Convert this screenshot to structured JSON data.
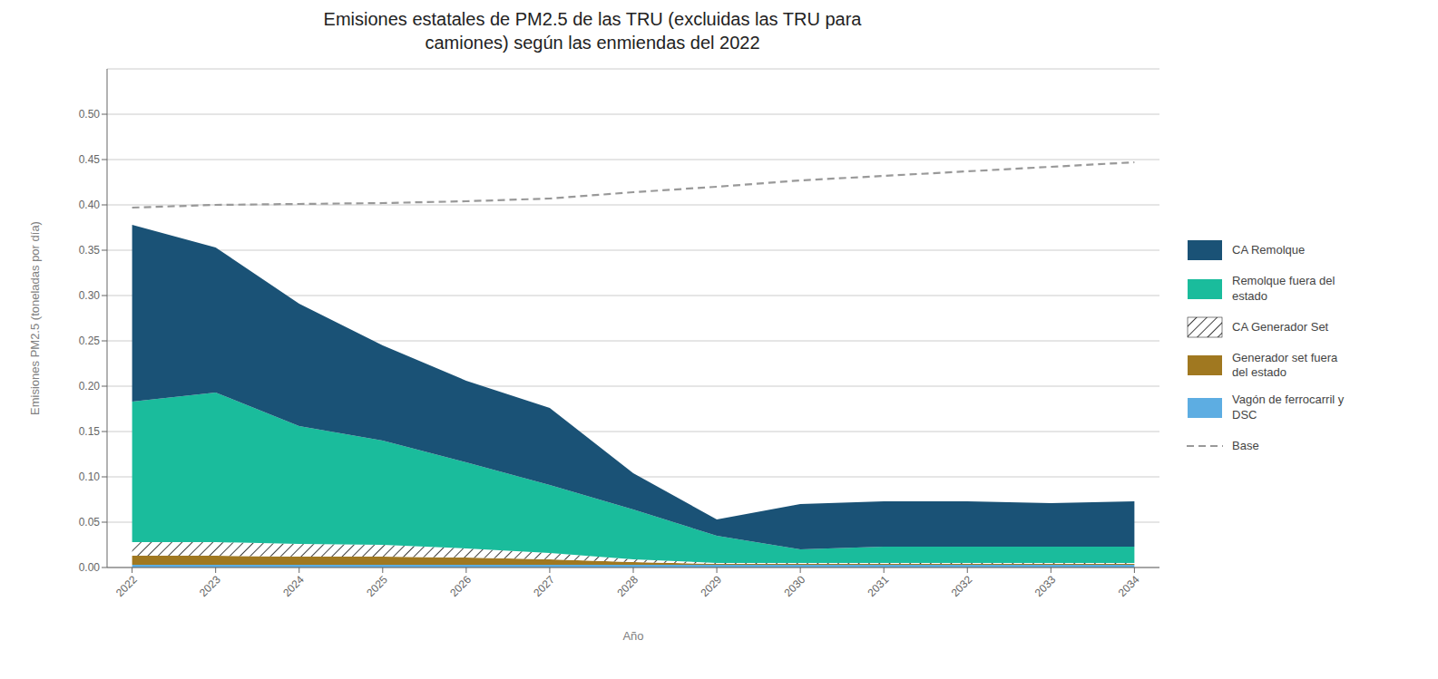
{
  "chart_data": {
    "type": "area",
    "title": "Emisiones estatales de PM2.5 de las TRU (excluidas las TRU para\ncamiones) según las enmiendas del 2022",
    "xlabel": "Año",
    "ylabel": "Emisiones PM2.5 (toneladas por día)",
    "x": [
      2022,
      2023,
      2024,
      2025,
      2026,
      2027,
      2028,
      2029,
      2030,
      2031,
      2032,
      2033,
      2034
    ],
    "stacked": true,
    "series": [
      {
        "name": "CA Remolque",
        "color": "#1A5276",
        "values": [
          0.195,
          0.16,
          0.135,
          0.105,
          0.09,
          0.085,
          0.04,
          0.018,
          0.05,
          0.05,
          0.05,
          0.048,
          0.05
        ]
      },
      {
        "name": "Remolque fuera del\nestado",
        "color": "#1ABC9C",
        "values": [
          0.155,
          0.165,
          0.13,
          0.115,
          0.095,
          0.075,
          0.055,
          0.03,
          0.015,
          0.018,
          0.018,
          0.018,
          0.018
        ]
      },
      {
        "name": "CA Generador Set",
        "color": "#ffffff",
        "values": [
          0.015,
          0.015,
          0.014,
          0.013,
          0.01,
          0.007,
          0.003,
          0.001,
          0.001,
          0.001,
          0.001,
          0.001,
          0.001
        ]
      },
      {
        "name": "Generador set fuera\ndel estado",
        "color": "#A07820",
        "values": [
          0.01,
          0.01,
          0.009,
          0.009,
          0.008,
          0.006,
          0.003,
          0.001,
          0.001,
          0.001,
          0.001,
          0.001,
          0.001
        ]
      },
      {
        "name": "Vagón de ferrocarril y\nDSC",
        "color": "#5DADE2",
        "values": [
          0.003,
          0.003,
          0.003,
          0.003,
          0.003,
          0.003,
          0.003,
          0.003,
          0.003,
          0.003,
          0.003,
          0.003,
          0.003
        ]
      },
      {
        "name": "Base",
        "type": "line",
        "color": "#999999",
        "line_style": "dashed",
        "values": [
          0.397,
          0.4,
          0.401,
          0.402,
          0.404,
          0.407,
          0.414,
          0.42,
          0.427,
          0.432,
          0.437,
          0.442,
          0.447
        ]
      }
    ],
    "xlim": [
      2021.7,
      2034.3
    ],
    "xticks": [
      2022,
      2023,
      2024,
      2025,
      2026,
      2027,
      2028,
      2029,
      2030,
      2031,
      2032,
      2033,
      2034
    ],
    "ylim": [
      0,
      0.55
    ],
    "yticks": [
      {
        "value": 0,
        "label": "0.00"
      },
      {
        "value": 0.05,
        "label": "0.05"
      },
      {
        "value": 0.1,
        "label": "0.10"
      },
      {
        "value": 0.15,
        "label": "0.15"
      },
      {
        "value": 0.2,
        "label": "0.20"
      },
      {
        "value": 0.25,
        "label": "0.25"
      },
      {
        "value": 0.3,
        "label": "0.30"
      },
      {
        "value": 0.35,
        "label": "0.35"
      },
      {
        "value": 0.4,
        "label": "0.40"
      },
      {
        "value": 0.45,
        "label": "0.45"
      },
      {
        "value": 0.5,
        "label": "0.50"
      }
    ],
    "grid": true,
    "legend": "right"
  }
}
